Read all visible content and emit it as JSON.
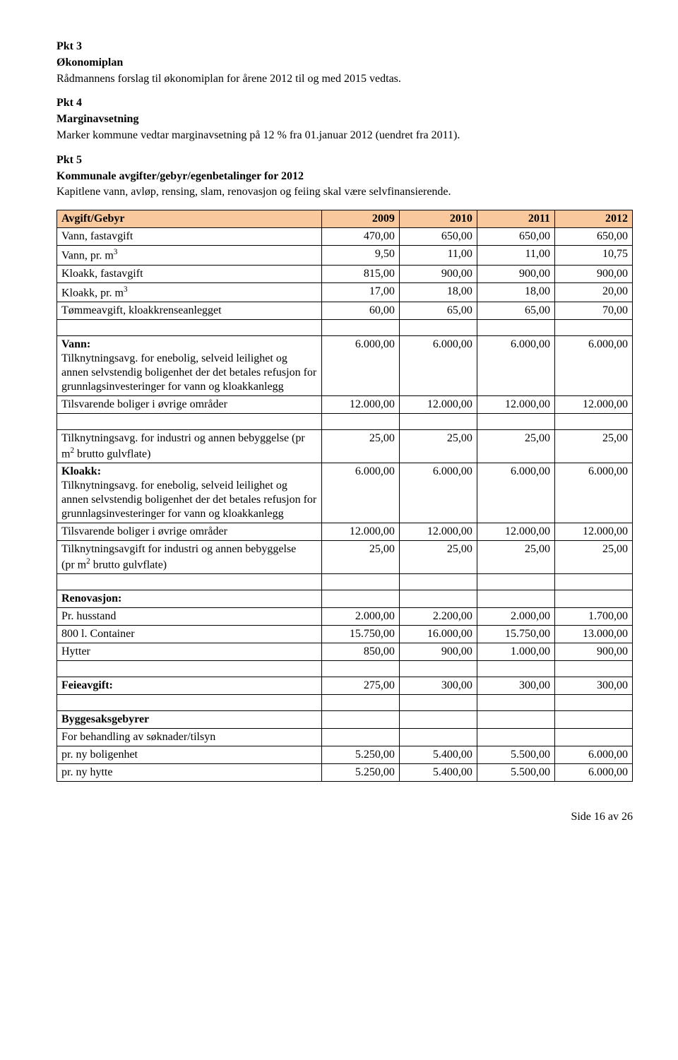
{
  "pkt3": {
    "heading": "Pkt 3",
    "title": "Økonomiplan",
    "text": "Rådmannens forslag til økonomiplan for årene 2012 til og med 2015 vedtas."
  },
  "pkt4": {
    "heading": "Pkt 4",
    "title": "Marginavsetning",
    "text": "Marker kommune vedtar marginavsetning på 12 % fra 01.januar 2012 (uendret fra 2011)."
  },
  "pkt5": {
    "heading": "Pkt 5",
    "title": "Kommunale avgifter/gebyr/egenbetalinger for 2012",
    "text": "Kapitlene vann, avløp, rensing, slam, renovasjon og feiing skal være selvfinansierende."
  },
  "table": {
    "header_label": "Avgift/Gebyr",
    "years": [
      "2009",
      "2010",
      "2011",
      "2012"
    ],
    "rows_top": [
      {
        "label": "Vann, fastavgift",
        "v": [
          "470,00",
          "650,00",
          "650,00",
          "650,00"
        ]
      },
      {
        "label_html": "Vann, pr. m<sup>3</sup>",
        "v": [
          "9,50",
          "11,00",
          "11,00",
          "10,75"
        ]
      },
      {
        "label": "Kloakk, fastavgift",
        "v": [
          "815,00",
          "900,00",
          "900,00",
          "900,00"
        ]
      },
      {
        "label_html": "Kloakk, pr. m<sup>3</sup>",
        "v": [
          "17,00",
          "18,00",
          "18,00",
          "20,00"
        ]
      },
      {
        "label": "Tømmeavgift, kloakkrenseanlegget",
        "v": [
          "60,00",
          "65,00",
          "65,00",
          "70,00"
        ]
      }
    ],
    "vann_heading": "Vann:",
    "vann_row1": {
      "label": "Tilknytningsavg. for enebolig, selveid leilighet og annen selvstendig bolig­enhet der det betales refusjon for grunnlagsinvesteringer for vann og kloakkanlegg",
      "v": [
        "6.000,00",
        "6.000,00",
        "6.000,00",
        "6.000,00"
      ]
    },
    "vann_row2": {
      "label": "Tilsvarende boliger i øvrige områder",
      "v": [
        "12.000,00",
        "12.000,00",
        "12.000,00",
        "12.000,00"
      ]
    },
    "ind_row": {
      "label_html": "Tilknytningsavg. for industri og annen bebyggelse (pr m<sup>2</sup> brutto gulvflate)",
      "v": [
        "25,00",
        "25,00",
        "25,00",
        "25,00"
      ]
    },
    "kloakk_heading": "Kloakk:",
    "kloakk_row1": {
      "label": "Tilknytningsavg. for enebolig, selveid leilighet og annen selvstendig bolig­enhet der det betales refusjon for grunnlagsinvesteringer for vann og kloakkanlegg",
      "v": [
        "6.000,00",
        "6.000,00",
        "6.000,00",
        "6.000,00"
      ]
    },
    "kloakk_row2": {
      "label": "Tilsvarende boliger i øvrige områder",
      "v": [
        "12.000,00",
        "12.000,00",
        "12.000,00",
        "12.000,00"
      ]
    },
    "kloakk_row3": {
      "label_html": "Tilknytningsavgift for industri og annen bebyggelse<br>(pr m<sup>2</sup> brutto gulvflate)",
      "v": [
        "25,00",
        "25,00",
        "25,00",
        "25,00"
      ]
    },
    "renov_heading": "Renovasjon:",
    "renov_rows": [
      {
        "label": "Pr. husstand",
        "v": [
          "2.000,00",
          "2.200,00",
          "2.000,00",
          "1.700,00"
        ]
      },
      {
        "label": "800 l. Container",
        "v": [
          "15.750,00",
          "16.000,00",
          "15.750,00",
          "13.000,00"
        ]
      },
      {
        "label": "Hytter",
        "v": [
          "850,00",
          "900,00",
          "1.000,00",
          "900,00"
        ]
      }
    ],
    "feie": {
      "label": "Feieavgift:",
      "v": [
        "275,00",
        "300,00",
        "300,00",
        "300,00"
      ]
    },
    "bygg_heading": "Byggesaksgebyrer",
    "bygg_sub": "For behandling av søknader/tilsyn",
    "bygg_rows": [
      {
        "label": "pr. ny boligenhet",
        "v": [
          "5.250,00",
          "5.400,00",
          "5.500,00",
          "6.000,00"
        ]
      },
      {
        "label": "pr. ny hytte",
        "v": [
          "5.250,00",
          "5.400,00",
          "5.500,00",
          "6.000,00"
        ]
      }
    ]
  },
  "footer": "Side 16 av 26"
}
